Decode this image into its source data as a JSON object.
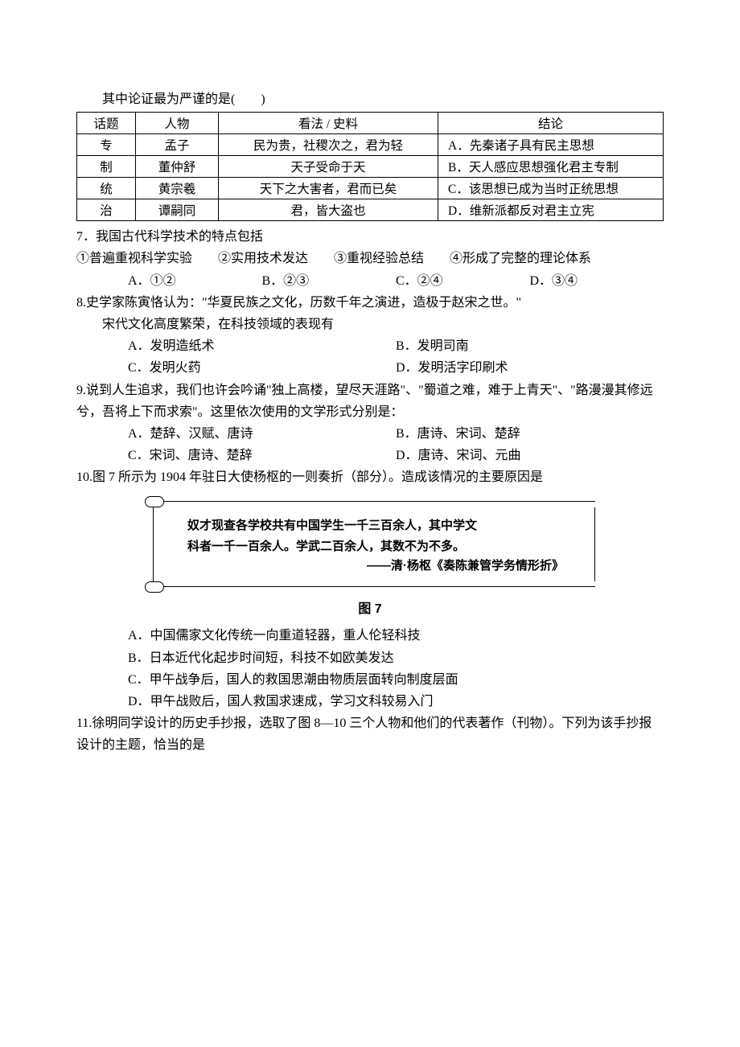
{
  "intro_line": "其中论证最为严谨的是(　　)",
  "table": {
    "headers": [
      "话题",
      "人物",
      "看法 / 史料",
      "结论"
    ],
    "topic_label": [
      "专",
      "制",
      "统",
      "治"
    ],
    "rows": [
      {
        "person": "孟子",
        "view": "民为贵，社稷次之，君为轻",
        "opt": "A．",
        "concl": "先秦诸子具有民主思想"
      },
      {
        "person": "董仲舒",
        "view": "天子受命于天",
        "opt": "B．",
        "concl": "天人感应思想强化君主专制"
      },
      {
        "person": "黄宗羲",
        "view": "天下之大害者，君而已矣",
        "opt": "C．",
        "concl": "该思想已成为当时正统思想"
      },
      {
        "person": "谭嗣同",
        "view": "君，皆大盗也",
        "opt": "D．",
        "concl": "维新派都反对君主立宪"
      }
    ]
  },
  "q7": {
    "stem": "7．我国古代科学技术的特点包括",
    "items": "①普遍重视科学实验　　②实用技术发达　　③重视经验总结　　④形成了完整的理论体系",
    "opts": {
      "A": "A．①②",
      "B": "B．②③",
      "C": "C．②④",
      "D": "D．③④"
    }
  },
  "q8": {
    "stem1": "8.史学家陈寅恪认为：\"华夏民族之文化，历数千年之演进，造极于赵宋之世。\"",
    "stem2": "宋代文化高度繁荣，在科技领域的表现有",
    "opts": {
      "A": "A．发明造纸术",
      "B": "B．发明司南",
      "C": "C．发明火药",
      "D": "D．发明活字印刷术"
    }
  },
  "q9": {
    "stem1": "9.说到人生追求，我们也许会吟诵\"独上高楼，望尽天涯路\"、\"蜀道之难，难于上青天\"、\"路漫漫其修远兮，吾将上下而求索\"。这里依次使用的文学形式分别是：",
    "opts": {
      "A": "A．楚辞、汉赋、唐诗",
      "B": "B．唐诗、宋词、楚辞",
      "C": "C．宋词、唐诗、楚辞",
      "D": "D．唐诗、宋词、元曲"
    }
  },
  "q10": {
    "stem1": "10.图 7 所示为 1904 年驻日大使杨枢的一则奏折（部分）。造成该情况的主要原因是",
    "memorial": {
      "l1": "奴才现查各学校共有中国学生一千三百余人，其中学文",
      "l2": "科者一千一百余人。学武二百余人，其数不为不多。",
      "src": "——清·杨枢《奏陈兼管学务情形折》"
    },
    "figlabel": "图 7",
    "opts": {
      "A": "A．中国儒家文化传统一向重道轻器，重人伦轻科技",
      "B": "B．日本近代化起步时间短，科技不如欧美发达",
      "C": "C．甲午战争后，国人的救国思潮由物质层面转向制度层面",
      "D": "D．甲午战败后，国人救国求速成，学习文科较易入门"
    }
  },
  "q11": {
    "stem": "11.徐明同学设计的历史手抄报，选取了图 8—10 三个人物和他们的代表著作（刊物）。下列为该手抄报设计的主题，恰当的是"
  }
}
